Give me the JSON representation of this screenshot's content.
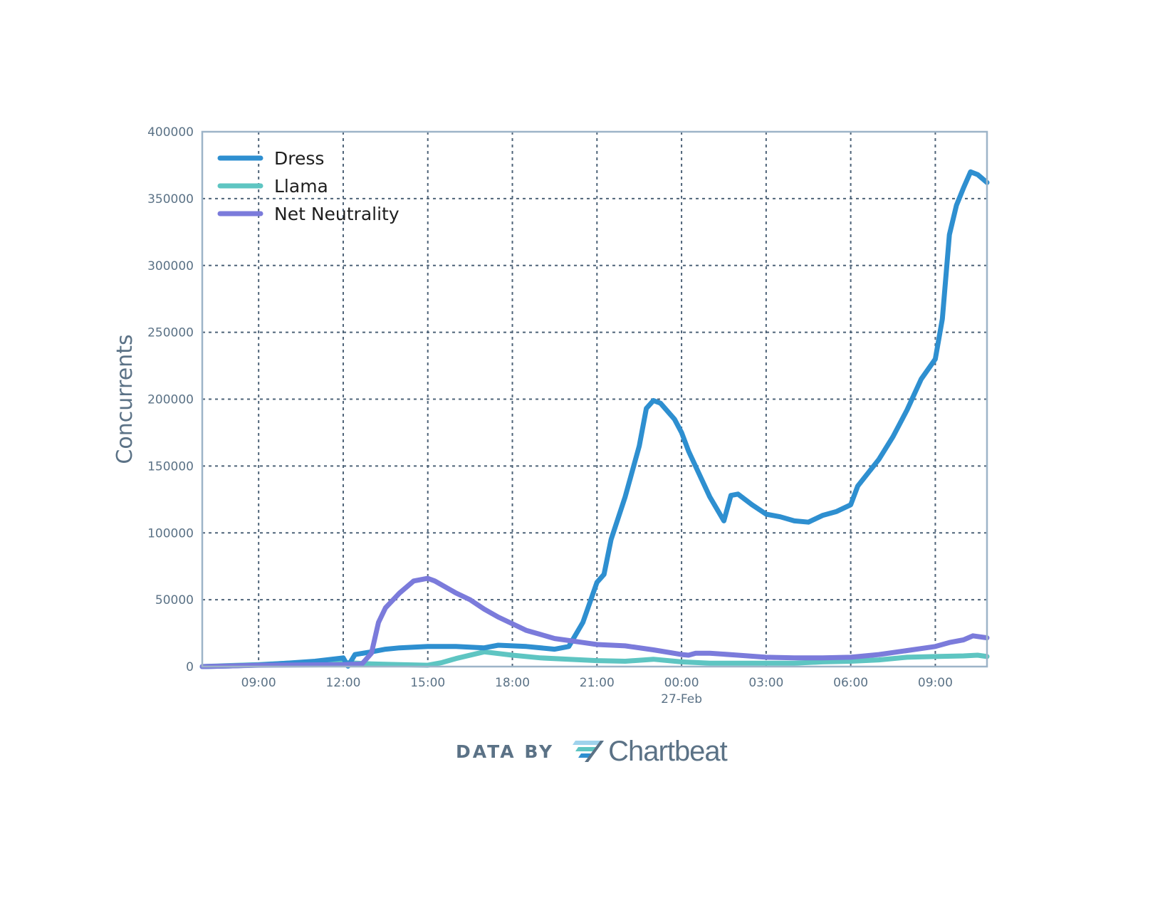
{
  "credit": {
    "prefix": "DATA BY",
    "brand": "Chartbeat",
    "logo_icon": "chartbeat-logo-icon"
  },
  "chart_data": {
    "type": "line",
    "ylabel": "Concurrents",
    "xlabel": "",
    "ylim": [
      0,
      400000
    ],
    "yticks": [
      0,
      50000,
      100000,
      150000,
      200000,
      250000,
      300000,
      350000,
      400000
    ],
    "xlim": [
      "2014-02-26T07:00",
      "2014-02-27T10:50"
    ],
    "xticks": [
      {
        "t": "2014-02-26T09:00",
        "label": "09:00"
      },
      {
        "t": "2014-02-26T12:00",
        "label": "12:00"
      },
      {
        "t": "2014-02-26T15:00",
        "label": "15:00"
      },
      {
        "t": "2014-02-26T18:00",
        "label": "18:00"
      },
      {
        "t": "2014-02-26T21:00",
        "label": "21:00"
      },
      {
        "t": "2014-02-27T00:00",
        "label": "00:00",
        "sublabel": "27-Feb"
      },
      {
        "t": "2014-02-27T03:00",
        "label": "03:00"
      },
      {
        "t": "2014-02-27T06:00",
        "label": "06:00"
      },
      {
        "t": "2014-02-27T09:00",
        "label": "09:00"
      }
    ],
    "grid": true,
    "grid_color": "#4e6378",
    "frame_color": "#9db4c8",
    "legend_position": "top-left",
    "series": [
      {
        "name": "Dress",
        "color": "#2e8fd0",
        "points": [
          [
            "2014-02-26T07:00",
            0
          ],
          [
            "2014-02-26T08:00",
            500
          ],
          [
            "2014-02-26T09:00",
            1200
          ],
          [
            "2014-02-26T10:00",
            2500
          ],
          [
            "2014-02-26T11:00",
            4000
          ],
          [
            "2014-02-26T12:00",
            6500
          ],
          [
            "2014-02-26T12:10",
            300
          ],
          [
            "2014-02-26T12:25",
            9000
          ],
          [
            "2014-02-26T13:00",
            11000
          ],
          [
            "2014-02-26T13:30",
            13000
          ],
          [
            "2014-02-26T14:00",
            14000
          ],
          [
            "2014-02-26T15:00",
            15000
          ],
          [
            "2014-02-26T16:00",
            15000
          ],
          [
            "2014-02-26T17:00",
            14000
          ],
          [
            "2014-02-26T17:30",
            16000
          ],
          [
            "2014-02-26T18:30",
            15000
          ],
          [
            "2014-02-26T19:30",
            13000
          ],
          [
            "2014-02-26T20:00",
            15000
          ],
          [
            "2014-02-26T20:30",
            33000
          ],
          [
            "2014-02-26T21:00",
            63000
          ],
          [
            "2014-02-26T21:15",
            69000
          ],
          [
            "2014-02-26T21:30",
            95000
          ],
          [
            "2014-02-26T22:00",
            127000
          ],
          [
            "2014-02-26T22:30",
            165000
          ],
          [
            "2014-02-26T22:45",
            193000
          ],
          [
            "2014-02-26T23:00",
            199000
          ],
          [
            "2014-02-26T23:15",
            197000
          ],
          [
            "2014-02-26T23:45",
            185000
          ],
          [
            "2014-02-27T00:00",
            175000
          ],
          [
            "2014-02-27T00:15",
            161000
          ],
          [
            "2014-02-27T01:00",
            127000
          ],
          [
            "2014-02-27T01:30",
            109000
          ],
          [
            "2014-02-27T01:45",
            128000
          ],
          [
            "2014-02-27T02:00",
            129000
          ],
          [
            "2014-02-27T02:30",
            121000
          ],
          [
            "2014-02-27T03:00",
            114000
          ],
          [
            "2014-02-27T03:30",
            112000
          ],
          [
            "2014-02-27T04:00",
            109000
          ],
          [
            "2014-02-27T04:30",
            108000
          ],
          [
            "2014-02-27T05:00",
            113000
          ],
          [
            "2014-02-27T05:30",
            116000
          ],
          [
            "2014-02-27T06:00",
            121000
          ],
          [
            "2014-02-27T06:15",
            135000
          ],
          [
            "2014-02-27T07:00",
            155000
          ],
          [
            "2014-02-27T07:30",
            172000
          ],
          [
            "2014-02-27T08:00",
            192000
          ],
          [
            "2014-02-27T08:30",
            215000
          ],
          [
            "2014-02-27T09:00",
            230000
          ],
          [
            "2014-02-27T09:15",
            260000
          ],
          [
            "2014-02-27T09:30",
            323000
          ],
          [
            "2014-02-27T09:45",
            345000
          ],
          [
            "2014-02-27T10:00",
            358000
          ],
          [
            "2014-02-27T10:15",
            370000
          ],
          [
            "2014-02-27T10:30",
            368000
          ],
          [
            "2014-02-27T10:50",
            362000
          ]
        ]
      },
      {
        "name": "Llama",
        "color": "#5ec5c2",
        "points": [
          [
            "2014-02-26T07:00",
            0
          ],
          [
            "2014-02-26T08:00",
            800
          ],
          [
            "2014-02-26T09:00",
            1500
          ],
          [
            "2014-02-26T10:00",
            2500
          ],
          [
            "2014-02-26T11:00",
            3000
          ],
          [
            "2014-02-26T12:00",
            3000
          ],
          [
            "2014-02-26T13:00",
            2000
          ],
          [
            "2014-02-26T14:00",
            1500
          ],
          [
            "2014-02-26T15:00",
            1000
          ],
          [
            "2014-02-26T15:30",
            3000
          ],
          [
            "2014-02-26T16:00",
            6000
          ],
          [
            "2014-02-26T17:00",
            11000
          ],
          [
            "2014-02-26T18:00",
            8500
          ],
          [
            "2014-02-26T19:00",
            6500
          ],
          [
            "2014-02-26T20:00",
            5500
          ],
          [
            "2014-02-26T21:00",
            4500
          ],
          [
            "2014-02-26T22:00",
            4000
          ],
          [
            "2014-02-26T23:00",
            5500
          ],
          [
            "2014-02-27T00:00",
            3500
          ],
          [
            "2014-02-27T01:00",
            2500
          ],
          [
            "2014-02-27T02:00",
            2500
          ],
          [
            "2014-02-27T03:00",
            2500
          ],
          [
            "2014-02-27T04:00",
            2500
          ],
          [
            "2014-02-27T05:00",
            3500
          ],
          [
            "2014-02-27T06:00",
            4000
          ],
          [
            "2014-02-27T07:00",
            5000
          ],
          [
            "2014-02-27T08:00",
            7000
          ],
          [
            "2014-02-27T09:00",
            7500
          ],
          [
            "2014-02-27T10:00",
            8000
          ],
          [
            "2014-02-27T10:30",
            8500
          ],
          [
            "2014-02-27T10:50",
            7500
          ]
        ]
      },
      {
        "name": "Net Neutrality",
        "color": "#7b7bdb",
        "points": [
          [
            "2014-02-26T07:00",
            0
          ],
          [
            "2014-02-26T09:00",
            1000
          ],
          [
            "2014-02-26T12:00",
            1500
          ],
          [
            "2014-02-26T12:40",
            2000
          ],
          [
            "2014-02-26T13:00",
            10000
          ],
          [
            "2014-02-26T13:15",
            33000
          ],
          [
            "2014-02-26T13:30",
            44000
          ],
          [
            "2014-02-26T14:00",
            55000
          ],
          [
            "2014-02-26T14:30",
            64000
          ],
          [
            "2014-02-26T15:00",
            66000
          ],
          [
            "2014-02-26T15:15",
            64000
          ],
          [
            "2014-02-26T16:00",
            55000
          ],
          [
            "2014-02-26T16:30",
            50000
          ],
          [
            "2014-02-26T17:00",
            43000
          ],
          [
            "2014-02-26T17:30",
            37000
          ],
          [
            "2014-02-26T18:00",
            32000
          ],
          [
            "2014-02-26T18:30",
            27000
          ],
          [
            "2014-02-26T19:00",
            24000
          ],
          [
            "2014-02-26T19:30",
            21000
          ],
          [
            "2014-02-26T20:00",
            19500
          ],
          [
            "2014-02-26T20:30",
            18000
          ],
          [
            "2014-02-26T21:00",
            16500
          ],
          [
            "2014-02-26T22:00",
            15500
          ],
          [
            "2014-02-26T23:00",
            12500
          ],
          [
            "2014-02-27T00:00",
            9000
          ],
          [
            "2014-02-27T00:15",
            8500
          ],
          [
            "2014-02-27T00:30",
            10000
          ],
          [
            "2014-02-27T01:00",
            10000
          ],
          [
            "2014-02-27T02:00",
            8500
          ],
          [
            "2014-02-27T03:00",
            7000
          ],
          [
            "2014-02-27T04:00",
            6500
          ],
          [
            "2014-02-27T05:00",
            6500
          ],
          [
            "2014-02-27T06:00",
            7000
          ],
          [
            "2014-02-27T07:00",
            9000
          ],
          [
            "2014-02-27T08:00",
            12000
          ],
          [
            "2014-02-27T09:00",
            15000
          ],
          [
            "2014-02-27T09:30",
            18000
          ],
          [
            "2014-02-27T10:00",
            20000
          ],
          [
            "2014-02-27T10:20",
            23000
          ],
          [
            "2014-02-27T10:50",
            21500
          ]
        ]
      }
    ]
  }
}
